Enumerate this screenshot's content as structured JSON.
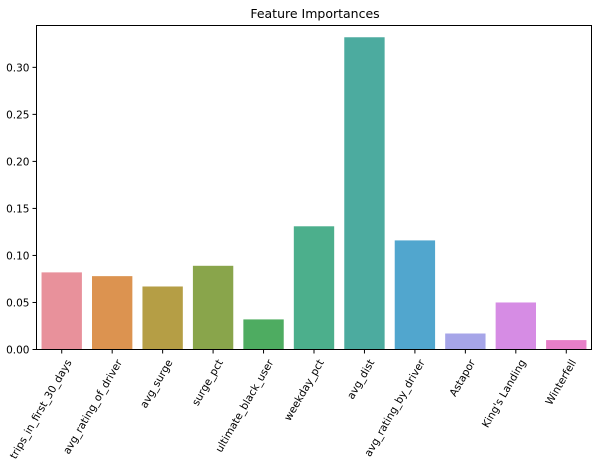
{
  "chart_data": {
    "type": "bar",
    "title": "Feature Importances",
    "xlabel": "",
    "ylabel": "",
    "categories": [
      "trips_in_first_30_days",
      "avg_rating_of_driver",
      "avg_surge",
      "surge_pct",
      "ultimate_black_user",
      "weekday_pct",
      "avg_dist",
      "avg_rating_by_driver",
      "Astapor",
      "King's Landing",
      "Winterfell"
    ],
    "values": [
      0.082,
      0.078,
      0.067,
      0.089,
      0.032,
      0.131,
      0.332,
      0.116,
      0.017,
      0.05,
      0.01
    ],
    "colors": [
      "#e8919b",
      "#dc9350",
      "#b59e45",
      "#89a54b",
      "#4eac61",
      "#4caf8c",
      "#4cab9f",
      "#51a6ce",
      "#a6a5e8",
      "#d68ce4",
      "#e77fc8"
    ],
    "yticks": [
      "0.00",
      "0.05",
      "0.10",
      "0.15",
      "0.20",
      "0.25",
      "0.30"
    ],
    "ylim": [
      0,
      0.3445
    ],
    "grid": false,
    "legend": "none"
  }
}
